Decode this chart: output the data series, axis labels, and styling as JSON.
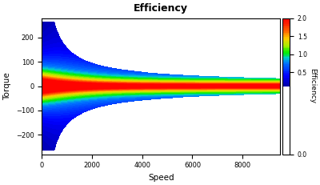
{
  "title": "Efficiency",
  "xlabel": "Speed",
  "ylabel": "Torque",
  "colorbar_label": "Efficiency",
  "xlim": [
    0,
    9500
  ],
  "ylim": [
    -280,
    280
  ],
  "speed_max": 9500,
  "torque_peak": 260,
  "vmin": 0,
  "vmax": 2,
  "background_color": "#ffffff",
  "figsize": [
    4.0,
    2.31
  ],
  "dpi": 100,
  "xticks": [
    0,
    2000,
    4000,
    6000,
    8000
  ],
  "yticks": [
    -200,
    -100,
    0,
    100,
    200
  ],
  "cbar_ticks": [
    0,
    0.5,
    1.0,
    1.5,
    2.0
  ],
  "colors_list": [
    [
      0.0,
      "#000080"
    ],
    [
      0.2,
      "#0000ff"
    ],
    [
      0.38,
      "#0077ff"
    ],
    [
      0.45,
      "#00cccc"
    ],
    [
      0.52,
      "#00ee00"
    ],
    [
      0.62,
      "#aaee00"
    ],
    [
      0.72,
      "#ffcc00"
    ],
    [
      0.82,
      "#ff6600"
    ],
    [
      0.92,
      "#ff2200"
    ],
    [
      1.0,
      "#ff0000"
    ]
  ]
}
